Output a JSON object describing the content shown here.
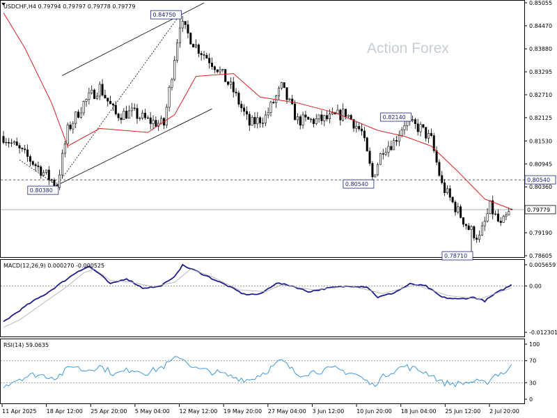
{
  "chart_data": [
    {
      "type": "candlestick",
      "panel": "price",
      "title": "USDCHF,H4  0.79794 0.79797 0.79778 0.79779",
      "symbol": "USDCHF",
      "timeframe": "H4",
      "ohlc_last": {
        "open": 0.79794,
        "high": 0.79797,
        "low": 0.79778,
        "close": 0.79779
      },
      "watermark": "Action Forex",
      "ylim": [
        0.78605,
        0.85055
      ],
      "y_ticks": [
        "0.85055",
        "0.84470",
        "0.83880",
        "0.83295",
        "0.82710",
        "0.82125",
        "0.81530",
        "0.80945",
        "0.80360",
        "0.79190",
        "0.78605"
      ],
      "y_tick_values": [
        0.85055,
        0.8447,
        0.8388,
        0.83295,
        0.8271,
        0.82125,
        0.8153,
        0.80945,
        0.8036,
        0.7919,
        0.78605
      ],
      "x_ticks": [
        "11 Apr 2025",
        "18 Apr 12:00",
        "25 Apr 20:00",
        "5 May 04:00",
        "12 May 12:00",
        "19 May 20:00",
        "27 May 04:00",
        "3 Jun 12:00",
        "10 Jun 20:00",
        "18 Jun 04:00",
        "25 Jun 12:00",
        "2 Jul 20:00"
      ],
      "anchors": [
        {
          "bar": 0,
          "value": 0.8165
        },
        {
          "bar": 10,
          "value": 0.8105
        },
        {
          "bar": 20,
          "value": 0.804
        },
        {
          "bar": 24,
          "value": 0.818
        },
        {
          "bar": 30,
          "value": 0.825
        },
        {
          "bar": 36,
          "value": 0.829
        },
        {
          "bar": 42,
          "value": 0.822
        },
        {
          "bar": 48,
          "value": 0.8225
        },
        {
          "bar": 54,
          "value": 0.8205
        },
        {
          "bar": 60,
          "value": 0.8195
        },
        {
          "bar": 66,
          "value": 0.8455
        },
        {
          "bar": 72,
          "value": 0.8395
        },
        {
          "bar": 80,
          "value": 0.834
        },
        {
          "bar": 86,
          "value": 0.828
        },
        {
          "bar": 92,
          "value": 0.8195
        },
        {
          "bar": 98,
          "value": 0.8215
        },
        {
          "bar": 104,
          "value": 0.829
        },
        {
          "bar": 110,
          "value": 0.8205
        },
        {
          "bar": 116,
          "value": 0.8205
        },
        {
          "bar": 122,
          "value": 0.821
        },
        {
          "bar": 128,
          "value": 0.8225
        },
        {
          "bar": 134,
          "value": 0.8175
        },
        {
          "bar": 138,
          "value": 0.806
        },
        {
          "bar": 142,
          "value": 0.8135
        },
        {
          "bar": 146,
          "value": 0.815
        },
        {
          "bar": 150,
          "value": 0.82
        },
        {
          "bar": 156,
          "value": 0.8185
        },
        {
          "bar": 160,
          "value": 0.8155
        },
        {
          "bar": 164,
          "value": 0.804
        },
        {
          "bar": 168,
          "value": 0.7995
        },
        {
          "bar": 174,
          "value": 0.793
        },
        {
          "bar": 178,
          "value": 0.7905
        },
        {
          "bar": 182,
          "value": 0.7985
        },
        {
          "bar": 186,
          "value": 0.7935
        },
        {
          "bar": 190,
          "value": 0.7978
        }
      ],
      "sma": {
        "color": "#dd1f1f",
        "anchors": [
          {
            "bar": 0,
            "value": 0.848
          },
          {
            "bar": 8,
            "value": 0.839
          },
          {
            "bar": 18,
            "value": 0.825
          },
          {
            "bar": 24,
            "value": 0.814
          },
          {
            "bar": 36,
            "value": 0.8185
          },
          {
            "bar": 54,
            "value": 0.8175
          },
          {
            "bar": 64,
            "value": 0.822
          },
          {
            "bar": 72,
            "value": 0.8318
          },
          {
            "bar": 86,
            "value": 0.8325
          },
          {
            "bar": 96,
            "value": 0.8265
          },
          {
            "bar": 110,
            "value": 0.825
          },
          {
            "bar": 124,
            "value": 0.8225
          },
          {
            "bar": 140,
            "value": 0.818
          },
          {
            "bar": 150,
            "value": 0.8165
          },
          {
            "bar": 160,
            "value": 0.814
          },
          {
            "bar": 170,
            "value": 0.8075
          },
          {
            "bar": 180,
            "value": 0.8005
          },
          {
            "bar": 190,
            "value": 0.7979
          }
        ]
      },
      "channel_lines": [
        {
          "from": {
            "bar": 22,
            "value": 0.832
          },
          "to": {
            "bar": 75,
            "value": 0.8505
          }
        },
        {
          "from": {
            "bar": 20,
            "value": 0.804
          },
          "to": {
            "bar": 78,
            "value": 0.8235
          }
        }
      ],
      "dotted_lines": [
        {
          "from": {
            "bar": 6,
            "value": 0.8105
          },
          "to": {
            "bar": 20,
            "value": 0.804
          }
        },
        {
          "from": {
            "bar": 20,
            "value": 0.804
          },
          "to": {
            "bar": 66,
            "value": 0.8475
          }
        }
      ],
      "horizontal_levels": [
        {
          "value": 0.8054,
          "label": "0.80540",
          "style": "dashed"
        },
        {
          "value": 0.79779,
          "label": "0.79779",
          "style": "solid-gray"
        }
      ],
      "price_labels": [
        {
          "text": "0.84750",
          "value": 0.8475,
          "bar": 66,
          "side": "left"
        },
        {
          "text": "0.80380",
          "value": 0.8038,
          "bar": 20,
          "side": "left"
        },
        {
          "text": "0.80540",
          "value": 0.8054,
          "bar": 138,
          "side": "left"
        },
        {
          "text": "0.82140",
          "value": 0.8214,
          "bar": 152,
          "side": "left"
        },
        {
          "text": "0.78710",
          "value": 0.7871,
          "bar": 175,
          "side": "left"
        }
      ],
      "current_price_label": "0.79779"
    },
    {
      "type": "line",
      "panel": "macd",
      "title": "MACD(12,26,9) 0.000270 -0.000525",
      "ylim": [
        -0.012301,
        0.005659
      ],
      "y_ticks": [
        "0.005659",
        "0.00",
        "-0.012301"
      ],
      "y_tick_values": [
        0.005659,
        0.0,
        -0.012301
      ],
      "series": [
        {
          "role": "macd",
          "color": "#1c1c8c",
          "anchors": [
            {
              "bar": 0,
              "value": -0.0095
            },
            {
              "bar": 4,
              "value": -0.0075
            },
            {
              "bar": 10,
              "value": -0.0045
            },
            {
              "bar": 16,
              "value": -0.002
            },
            {
              "bar": 22,
              "value": 0.001
            },
            {
              "bar": 28,
              "value": 0.004
            },
            {
              "bar": 32,
              "value": 0.0052
            },
            {
              "bar": 36,
              "value": 0.0032
            },
            {
              "bar": 40,
              "value": 0.0005
            },
            {
              "bar": 46,
              "value": 0.002
            },
            {
              "bar": 52,
              "value": -0.0005
            },
            {
              "bar": 58,
              "value": -0.0002
            },
            {
              "bar": 63,
              "value": 0.0018
            },
            {
              "bar": 67,
              "value": 0.0055
            },
            {
              "bar": 72,
              "value": 0.004
            },
            {
              "bar": 78,
              "value": 0.002
            },
            {
              "bar": 84,
              "value": 0.0
            },
            {
              "bar": 90,
              "value": -0.0022
            },
            {
              "bar": 96,
              "value": -0.0022
            },
            {
              "bar": 102,
              "value": 0.0008
            },
            {
              "bar": 108,
              "value": 0.0
            },
            {
              "bar": 114,
              "value": -0.0015
            },
            {
              "bar": 122,
              "value": -0.0005
            },
            {
              "bar": 130,
              "value": 0.0
            },
            {
              "bar": 136,
              "value": -0.0002
            },
            {
              "bar": 140,
              "value": -0.003
            },
            {
              "bar": 146,
              "value": -0.0018
            },
            {
              "bar": 152,
              "value": 0.0005
            },
            {
              "bar": 158,
              "value": 0.0
            },
            {
              "bar": 164,
              "value": -0.003
            },
            {
              "bar": 170,
              "value": -0.0035
            },
            {
              "bar": 176,
              "value": -0.003
            },
            {
              "bar": 180,
              "value": -0.004
            },
            {
              "bar": 184,
              "value": -0.002
            },
            {
              "bar": 190,
              "value": 0.0003
            }
          ]
        },
        {
          "role": "signal",
          "color": "#aaaaaa",
          "anchors": [
            {
              "bar": 0,
              "value": -0.011
            },
            {
              "bar": 6,
              "value": -0.009
            },
            {
              "bar": 12,
              "value": -0.006
            },
            {
              "bar": 18,
              "value": -0.003
            },
            {
              "bar": 24,
              "value": 0.0
            },
            {
              "bar": 30,
              "value": 0.0035
            },
            {
              "bar": 34,
              "value": 0.0045
            },
            {
              "bar": 40,
              "value": 0.0015
            },
            {
              "bar": 48,
              "value": 0.001
            },
            {
              "bar": 56,
              "value": -0.0002
            },
            {
              "bar": 64,
              "value": 0.001
            },
            {
              "bar": 70,
              "value": 0.0045
            },
            {
              "bar": 78,
              "value": 0.0025
            },
            {
              "bar": 88,
              "value": -0.001
            },
            {
              "bar": 98,
              "value": -0.0015
            },
            {
              "bar": 104,
              "value": 0.0003
            },
            {
              "bar": 116,
              "value": -0.001
            },
            {
              "bar": 130,
              "value": 0.0
            },
            {
              "bar": 142,
              "value": -0.002
            },
            {
              "bar": 154,
              "value": 0.0003
            },
            {
              "bar": 166,
              "value": -0.0025
            },
            {
              "bar": 178,
              "value": -0.0035
            },
            {
              "bar": 190,
              "value": -0.0005
            }
          ]
        }
      ]
    },
    {
      "type": "line",
      "panel": "rsi",
      "title": "RSI(14) 59.0635",
      "ylim": [
        0,
        100
      ],
      "y_ticks": [
        "100",
        "70",
        "30",
        "0"
      ],
      "y_tick_values": [
        100,
        70,
        30,
        0
      ],
      "levels": [
        70,
        30
      ],
      "series": [
        {
          "role": "rsi",
          "color": "#2b8fd8",
          "anchors": [
            {
              "bar": 0,
              "value": 25
            },
            {
              "bar": 6,
              "value": 38
            },
            {
              "bar": 12,
              "value": 45
            },
            {
              "bar": 20,
              "value": 40
            },
            {
              "bar": 26,
              "value": 62
            },
            {
              "bar": 30,
              "value": 52
            },
            {
              "bar": 36,
              "value": 60
            },
            {
              "bar": 42,
              "value": 45
            },
            {
              "bar": 48,
              "value": 55
            },
            {
              "bar": 54,
              "value": 48
            },
            {
              "bar": 60,
              "value": 60
            },
            {
              "bar": 66,
              "value": 78
            },
            {
              "bar": 72,
              "value": 55
            },
            {
              "bar": 80,
              "value": 48
            },
            {
              "bar": 86,
              "value": 40
            },
            {
              "bar": 92,
              "value": 35
            },
            {
              "bar": 98,
              "value": 50
            },
            {
              "bar": 104,
              "value": 70
            },
            {
              "bar": 110,
              "value": 45
            },
            {
              "bar": 116,
              "value": 50
            },
            {
              "bar": 124,
              "value": 55
            },
            {
              "bar": 132,
              "value": 45
            },
            {
              "bar": 138,
              "value": 25
            },
            {
              "bar": 144,
              "value": 48
            },
            {
              "bar": 150,
              "value": 60
            },
            {
              "bar": 156,
              "value": 52
            },
            {
              "bar": 160,
              "value": 45
            },
            {
              "bar": 164,
              "value": 30
            },
            {
              "bar": 170,
              "value": 28
            },
            {
              "bar": 176,
              "value": 32
            },
            {
              "bar": 180,
              "value": 28
            },
            {
              "bar": 184,
              "value": 45
            },
            {
              "bar": 188,
              "value": 50
            },
            {
              "bar": 190,
              "value": 59
            }
          ]
        }
      ]
    }
  ]
}
